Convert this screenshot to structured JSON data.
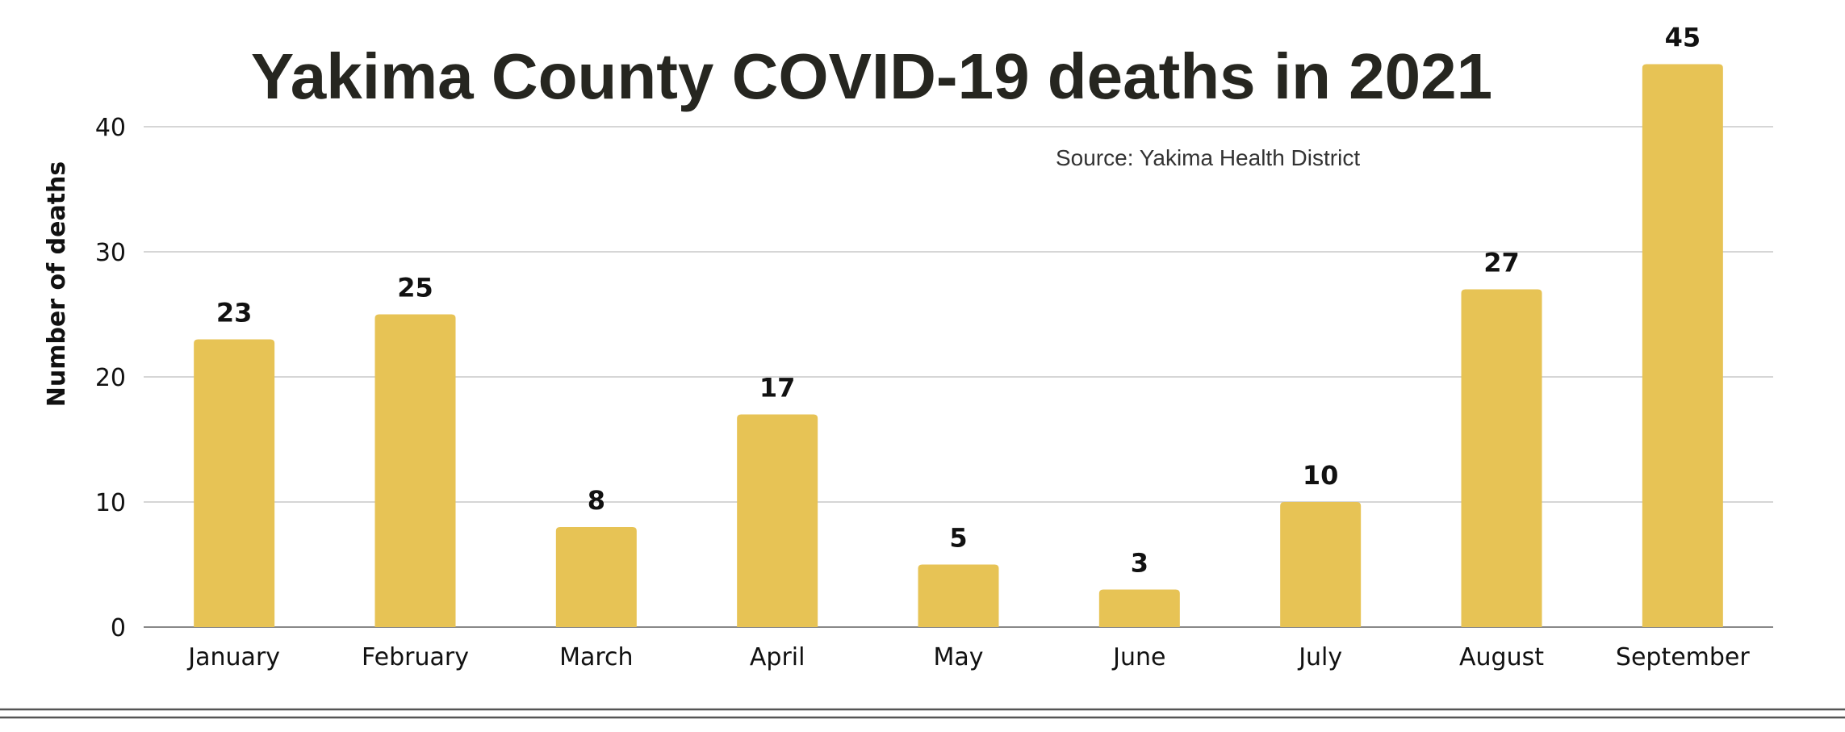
{
  "chart_data": {
    "type": "bar",
    "title": "Yakima County COVID-19 deaths in 2021",
    "source": "Source: Yakima Health District",
    "xlabel": "",
    "ylabel": "Number of deaths",
    "ylim": [
      0,
      45
    ],
    "yticks": [
      0,
      10,
      20,
      30,
      40
    ],
    "grid": true,
    "legend": "none",
    "categories": [
      "January",
      "February",
      "March",
      "April",
      "May",
      "June",
      "July",
      "August",
      "September"
    ],
    "values": [
      23,
      25,
      8,
      17,
      5,
      3,
      10,
      27,
      45
    ],
    "bar_color": "#e7c355",
    "text_color": "#262620"
  }
}
